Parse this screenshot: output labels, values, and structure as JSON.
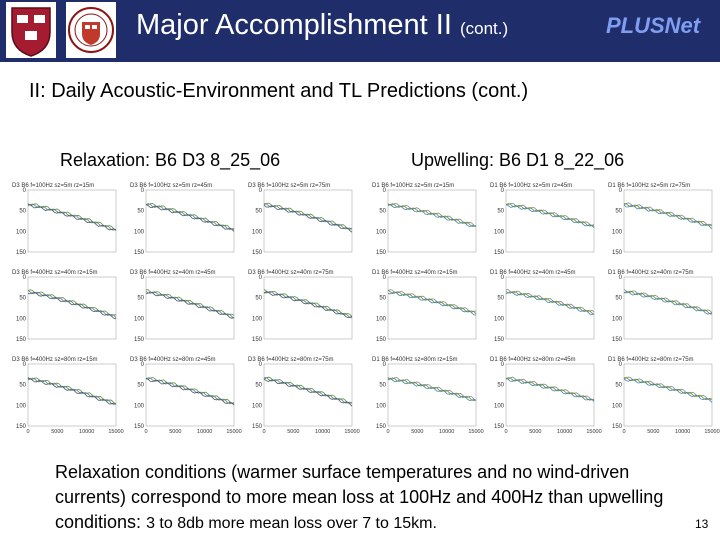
{
  "header": {
    "title": "Major Accomplishment II",
    "title_suffix": "(cont.)",
    "brand": "PLUSNet",
    "colors": {
      "background": "#1f2d6b",
      "title": "#ffffff",
      "brand": "#7f9ef2"
    },
    "logos": [
      "harvard-shield",
      "university-seal"
    ]
  },
  "subtitle": "II:  Daily Acoustic-Environment and TL Predictions (cont.)",
  "panels": [
    {
      "label": "Relaxation: B6 D3 8_25_06",
      "plot_titles": [
        "D3 B6 f=100Hz sz=5m rz=15m",
        "D3 B6 f=100Hz sz=5m rz=45m",
        "D3 B6 f=100Hz sz=5m rz=75m",
        "D3 B6 f=400Hz sz=40m rz=15m",
        "D3 B6 f=400Hz sz=40m rz=45m",
        "D3 B6 f=400Hz sz=40m rz=75m",
        "D3 B6 f=400Hz sz=80m rz=15m",
        "D3 B6 f=400Hz sz=80m rz=45m",
        "D3 B6 f=400Hz sz=80m rz=75m"
      ]
    },
    {
      "label": "Upwelling: B6 D1 8_22_06",
      "plot_titles": [
        "D1 B6 f=100Hz sz=5m rz=15m",
        "D1 B6 f=100Hz sz=5m rz=45m",
        "D1 B6 f=100Hz sz=5m rz=75m",
        "D1 B6 f=400Hz sz=40m rz=15m",
        "D1 B6 f=400Hz sz=40m rz=45m",
        "D1 B6 f=400Hz sz=40m rz=75m",
        "D1 B6 f=400Hz sz=80m rz=15m",
        "D1 B6 f=400Hz sz=80m rz=45m",
        "D1 B6 f=400Hz sz=80m rz=75m"
      ]
    }
  ],
  "plot_axes": {
    "y_ticks": [
      "0",
      "50",
      "100",
      "150"
    ],
    "x_ticks": [
      "0",
      "5000",
      "10000",
      "15000"
    ],
    "ylim": [
      0,
      150
    ],
    "xlim": [
      0,
      15000
    ]
  },
  "caption": {
    "main": "Relaxation conditions (warmer surface temperatures and no wind-driven currents) correspond to more mean loss at 100Hz and 400Hz than upwelling conditions:",
    "small": "3 to 8db more mean loss over 7 to 15km."
  },
  "page_number": "13"
}
